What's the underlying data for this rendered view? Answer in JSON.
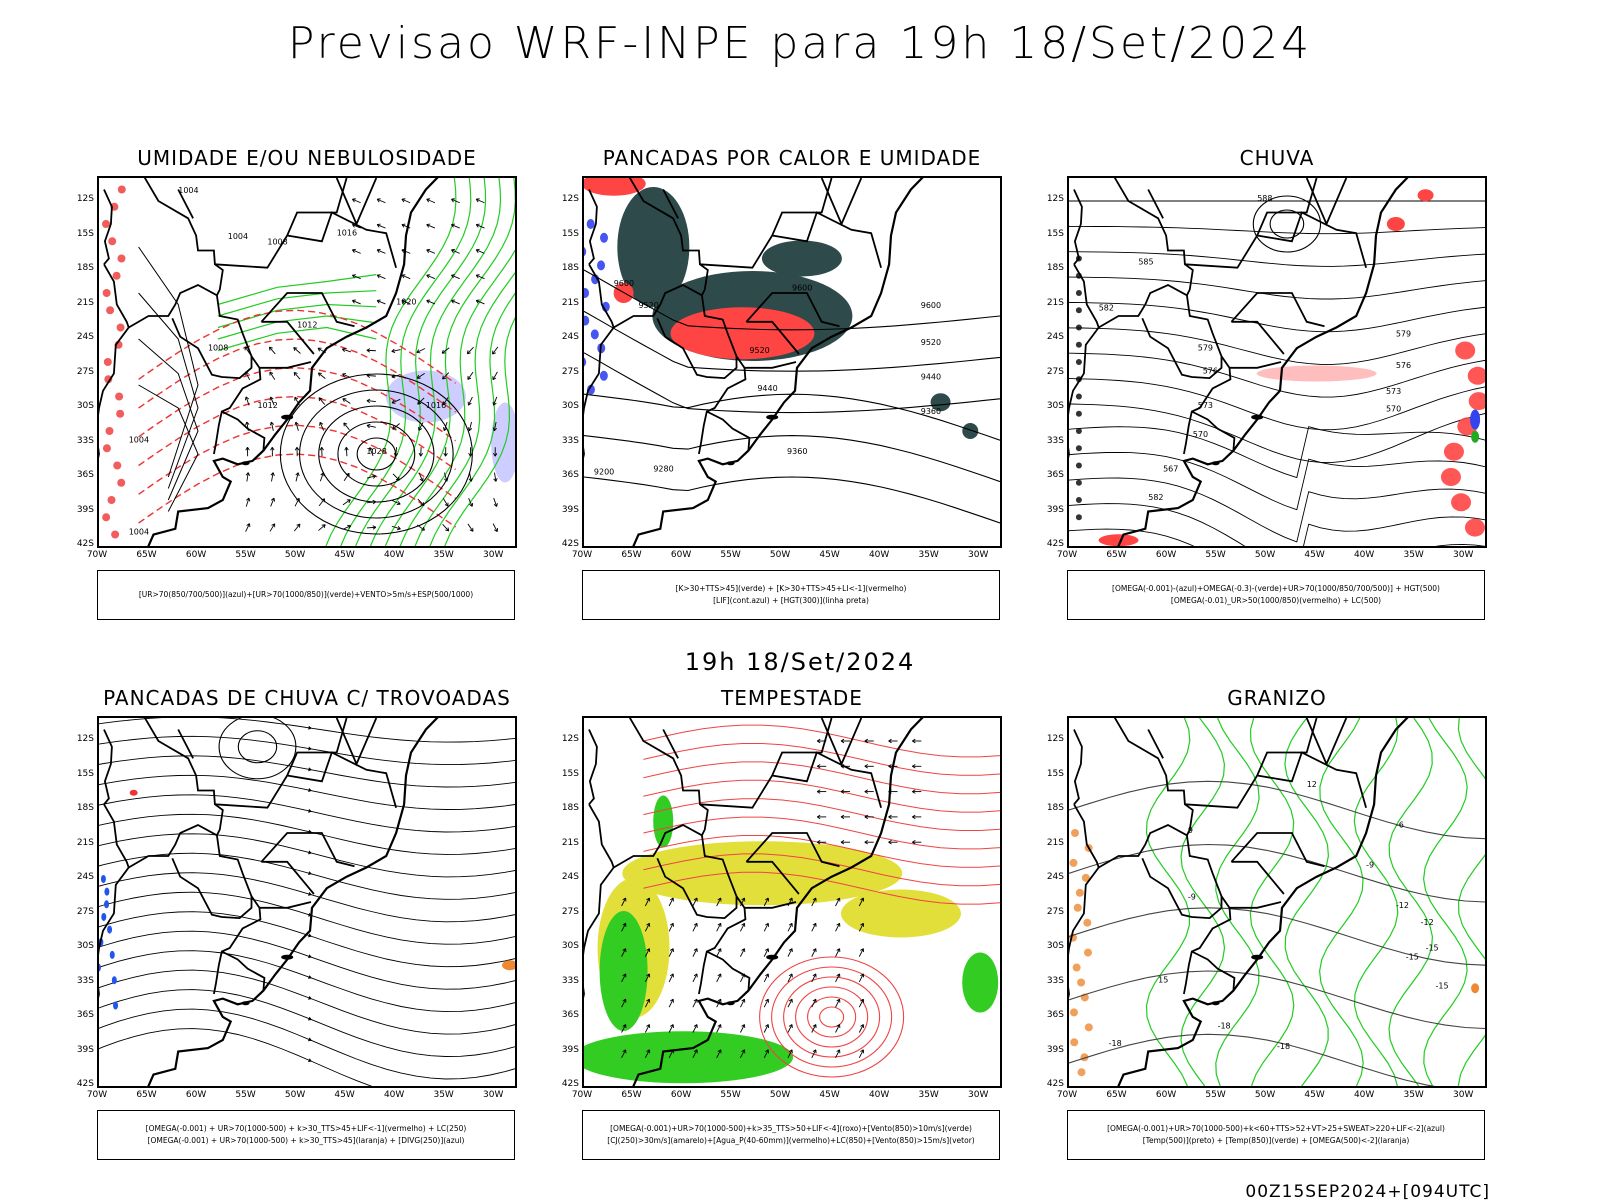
{
  "header": {
    "title": "Previsao WRF-INPE  para 19h 18/Set/2024"
  },
  "middle_date": "19h 18/Set/2024",
  "footer": "00Z15SEP2024+[094UTC]",
  "axes": {
    "lat_labels": [
      "12S",
      "15S",
      "18S",
      "21S",
      "24S",
      "27S",
      "30S",
      "33S",
      "36S",
      "39S",
      "42S"
    ],
    "lon_labels": [
      "70W",
      "65W",
      "60W",
      "55W",
      "50W",
      "45W",
      "40W",
      "35W",
      "30W"
    ]
  },
  "panels": [
    {
      "title": "UMIDADE E/OU NEBULOSIDADE",
      "legend": [
        "[UR>70(850/700/500)](azul)+[UR>70(1000/850)](verde)+VENTO>5m/s+ESP(500/1000)"
      ],
      "contour_labels": [
        "1004",
        "1004",
        "1008",
        "1012",
        "1016",
        "1020",
        "1008",
        "1012",
        "1004",
        "1028",
        "1016",
        "1004"
      ]
    },
    {
      "title": "PANCADAS POR CALOR E UMIDADE",
      "legend": [
        "[K>30+TTS>45](verde) + [K>30+TTS>45+LI<-1](vermelho)",
        "[LIF](cont.azul) + [HGT(300)](linha preta)"
      ],
      "contour_labels": [
        "9600",
        "9520",
        "9440",
        "9360",
        "9520",
        "9440",
        "9360",
        "9280",
        "9200",
        "9600",
        "9520",
        "9600"
      ]
    },
    {
      "title": "CHUVA",
      "legend": [
        "[OMEGA(-0.001)-(azul)+OMEGA(-0.3)-(verde)+UR>70(1000/850/700/500)] + HGT(500)",
        "[OMEGA(-0.01)_UR>50(1000/850)(vermelho) + LC(500)"
      ],
      "contour_labels": [
        "588",
        "585",
        "582",
        "579",
        "576",
        "573",
        "570",
        "567",
        "582",
        "579",
        "576",
        "573",
        "570"
      ]
    },
    {
      "title": "PANCADAS DE CHUVA C/ TROVOADAS",
      "legend": [
        "[OMEGA(-0.001) + UR>70(1000-500) + k>30_TTS>45+LIF<-1](vermelho) + LC(250)",
        "[OMEGA(-0.001) + UR>70(1000-500) + k>30_TTS>45](laranja) + [DIVG(250)](azul)"
      ],
      "contour_labels": []
    },
    {
      "title": "TEMPESTADE",
      "legend": [
        "[OMEGA(-0.001)+UR>70(1000-500)+k>35_TTS>50+LIF<-4](roxo)+[Vento(850)>10m/s](verde)",
        "[CJ(250)>30m/s](amarelo)+[Agua_P(40-60mm)](vermelho)+LC(850)+[Vento(850)>15m/s](vetor)"
      ],
      "contour_labels": []
    },
    {
      "title": "GRANIZO",
      "legend": [
        "[OMEGA(-0.001)+UR>70(1000-500)+k<60+TTS>52+VT>25+SWEAT>220+LIF<-2](azul)",
        "[Temp(500)](preto) + [Temp(850)](verde) + [OMEGA(500)<-2](laranja)"
      ],
      "contour_labels": [
        "-9",
        "-12",
        "-15",
        "-18",
        "-18",
        "-18",
        "-15",
        "-12",
        "-9",
        "-6",
        "-15",
        "9",
        "12",
        "15"
      ]
    }
  ]
}
